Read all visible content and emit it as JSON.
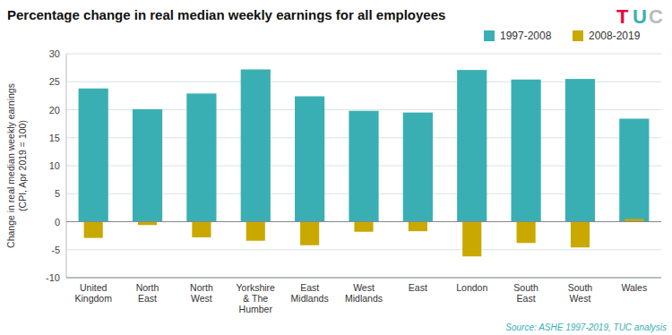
{
  "chart_data": {
    "type": "bar",
    "title": "Percentage change in real median weekly earnings for all employees",
    "ylabel": "Change in real median weekly earnings\n(CPI, Apr 2019 = 100)",
    "categories": [
      "United\nKingdom",
      "North\nEast",
      "North\nWest",
      "Yorkshire\n& The\nHumber",
      "East\nMidlands",
      "West\nMidlands",
      "East",
      "London",
      "South\nEast",
      "South\nWest",
      "Wales"
    ],
    "series": [
      {
        "name": "1997-2008",
        "color": "#3AAFB3",
        "values": [
          23.8,
          20.1,
          22.9,
          27.2,
          22.4,
          19.8,
          19.5,
          27.1,
          25.4,
          25.5,
          18.4
        ]
      },
      {
        "name": "2008-2019",
        "color": "#C9A800",
        "values": [
          -2.9,
          -0.6,
          -2.8,
          -3.4,
          -4.2,
          -1.8,
          -1.7,
          -6.2,
          -3.8,
          -4.6,
          0.5
        ]
      }
    ],
    "ylim": [
      -10,
      30
    ],
    "yticks": [
      -10,
      -5,
      0,
      5,
      10,
      15,
      20,
      25,
      30
    ],
    "grid": true,
    "legend": "top",
    "annotations": [
      {
        "text": "Source: ASHE 1997-2019, TUC analysis",
        "color": "#3AAFB3"
      },
      {
        "text": "T",
        "color": "#E8003D"
      },
      {
        "text": "U",
        "color": "#3AAFB3"
      },
      {
        "text": "C",
        "color": "#BBBBBB"
      }
    ]
  }
}
